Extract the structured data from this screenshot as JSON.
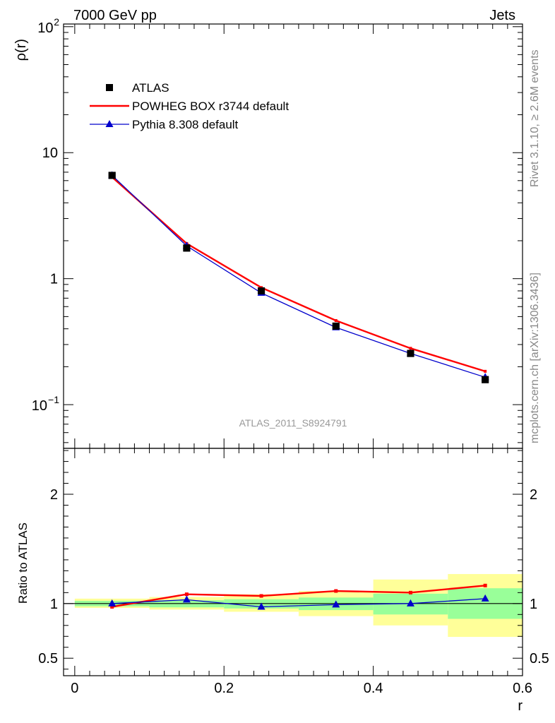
{
  "header": {
    "left": "7000 GeV pp",
    "right": "Jets"
  },
  "side_text": {
    "top": "Rivet 3.1.10, ≥ 2.6M events",
    "bottom": "mcplots.cern.ch [arXiv:1306.3436]"
  },
  "watermark": "ATLAS_2011_S8924791",
  "chart_data": [
    {
      "type": "scatter",
      "panel": "main",
      "xlabel": "r",
      "ylabel": "ρ(r)",
      "yscale": "log",
      "xlim": [
        -0.015,
        0.6
      ],
      "ylim": [
        0.045,
        105
      ],
      "ytick_labels": [
        "10",
        "1"
      ],
      "ytick_power_labels": [
        {
          "base": "10",
          "exp": "2"
        },
        {
          "base": "10",
          "exp": "−1"
        }
      ],
      "legend": {
        "placement": "top-left"
      },
      "series": [
        {
          "name": "ATLAS",
          "style": "markers",
          "color": "#000000",
          "x": [
            0.05,
            0.15,
            0.25,
            0.35,
            0.45,
            0.55
          ],
          "y": [
            6.6,
            1.75,
            0.8,
            0.42,
            0.255,
            0.158
          ]
        },
        {
          "name": "POWHEG BOX r3744 default",
          "style": "line",
          "color": "#ff0000",
          "x": [
            0.05,
            0.15,
            0.25,
            0.35,
            0.45,
            0.55
          ],
          "y": [
            6.4,
            1.9,
            0.85,
            0.465,
            0.28,
            0.184
          ]
        },
        {
          "name": "Pythia 8.308 default",
          "style": "line-triangles",
          "color": "#0000cc",
          "x": [
            0.05,
            0.15,
            0.25,
            0.35,
            0.45,
            0.55
          ],
          "y": [
            6.6,
            1.82,
            0.77,
            0.41,
            0.255,
            0.165
          ]
        }
      ]
    },
    {
      "type": "line",
      "panel": "ratio",
      "xlabel": "r",
      "ylabel": "Ratio to ATLAS",
      "xlim": [
        -0.015,
        0.6
      ],
      "ylim": [
        0.34,
        2.42
      ],
      "xtick_labels": [
        "0",
        "0.2",
        "0.4",
        "0.6"
      ],
      "ytick_labels": [
        "2",
        "1",
        "0.5"
      ],
      "bands": [
        {
          "x0": 0.0,
          "x1": 0.1,
          "inner": [
            0.975,
            1.025
          ],
          "outer": [
            0.96,
            1.045
          ]
        },
        {
          "x0": 0.1,
          "x1": 0.2,
          "inner": [
            0.965,
            1.03
          ],
          "outer": [
            0.945,
            1.06
          ]
        },
        {
          "x0": 0.2,
          "x1": 0.3,
          "inner": [
            0.955,
            1.04
          ],
          "outer": [
            0.925,
            1.085
          ]
        },
        {
          "x0": 0.3,
          "x1": 0.4,
          "inner": [
            0.94,
            1.055
          ],
          "outer": [
            0.885,
            1.115
          ]
        },
        {
          "x0": 0.4,
          "x1": 0.5,
          "inner": [
            0.9,
            1.09
          ],
          "outer": [
            0.8,
            1.22
          ]
        },
        {
          "x0": 0.5,
          "x1": 0.6,
          "inner": [
            0.86,
            1.14
          ],
          "outer": [
            0.695,
            1.27
          ]
        }
      ],
      "series": [
        {
          "name": "POWHEG BOX r3744 default",
          "color": "#ff0000",
          "x": [
            0.05,
            0.15,
            0.25,
            0.35,
            0.45,
            0.55
          ],
          "y": [
            0.97,
            1.085,
            1.07,
            1.115,
            1.1,
            1.165
          ]
        },
        {
          "name": "Pythia 8.308 default",
          "color": "#0000cc",
          "x": [
            0.05,
            0.15,
            0.25,
            0.35,
            0.45,
            0.55
          ],
          "y": [
            1.0,
            1.035,
            0.97,
            0.99,
            1.0,
            1.045
          ]
        }
      ]
    }
  ]
}
